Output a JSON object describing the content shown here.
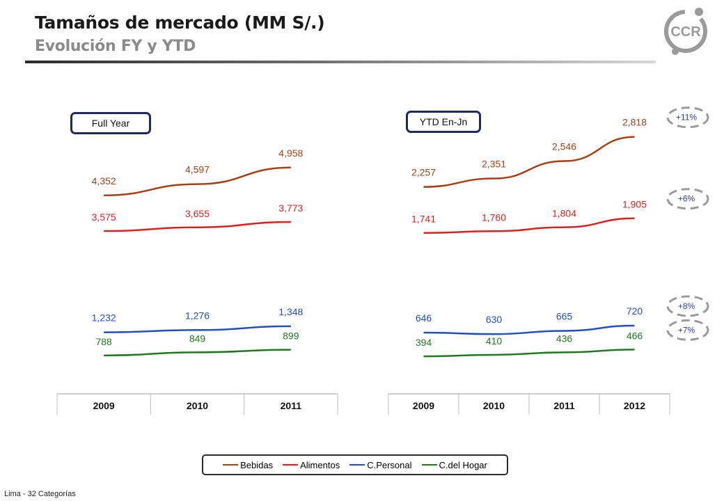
{
  "header": {
    "title": "Tamaños de mercado (MM S/.)",
    "subtitle": "Evolución FY y YTD"
  },
  "logo": {
    "text": "CCR"
  },
  "colors": {
    "Bebidas": "#a53f14",
    "Alimentos": "#e01e1e",
    "C.Personal": "#1f4fc0",
    "C.del Hogar": "#1f7a1f",
    "growth": "#2f3aa8"
  },
  "chart_data": [
    {
      "type": "line",
      "label": "Full Year",
      "categories": [
        "2009",
        "2010",
        "2011"
      ],
      "series": [
        {
          "name": "Bebidas",
          "values": [
            4352,
            4597,
            4958
          ],
          "labels": [
            "4,352",
            "4,597",
            "4,958"
          ]
        },
        {
          "name": "Alimentos",
          "values": [
            3575,
            3655,
            3773
          ],
          "labels": [
            "3,575",
            "3,655",
            "3,773"
          ]
        },
        {
          "name": "C.Personal",
          "values": [
            1232,
            1276,
            1348
          ],
          "labels": [
            "1,232",
            "1,276",
            "1,348"
          ]
        },
        {
          "name": "C.del Hogar",
          "values": [
            788,
            849,
            899
          ],
          "labels": [
            "788",
            "849",
            "899"
          ]
        }
      ]
    },
    {
      "type": "line",
      "label": "YTD En-Jn",
      "categories": [
        "2009",
        "2010",
        "2011",
        "2012"
      ],
      "series": [
        {
          "name": "Bebidas",
          "values": [
            2257,
            2351,
            2546,
            2818
          ],
          "labels": [
            "2,257",
            "2,351",
            "2,546",
            "2,818"
          ],
          "growth": "+11%"
        },
        {
          "name": "Alimentos",
          "values": [
            1741,
            1760,
            1804,
            1905
          ],
          "labels": [
            "1,741",
            "1,760",
            "1,804",
            "1,905"
          ],
          "growth": "+6%"
        },
        {
          "name": "C.Personal",
          "values": [
            646,
            630,
            665,
            720
          ],
          "labels": [
            "646",
            "630",
            "665",
            "720"
          ],
          "growth": "+8%"
        },
        {
          "name": "C.del Hogar",
          "values": [
            394,
            410,
            436,
            466
          ],
          "labels": [
            "394",
            "410",
            "436",
            "466"
          ],
          "growth": "+7%"
        }
      ]
    }
  ],
  "legend": [
    "Bebidas",
    "Alimentos",
    "C.Personal",
    "C.del Hogar"
  ],
  "footer": "Lima - 32 Categorías"
}
